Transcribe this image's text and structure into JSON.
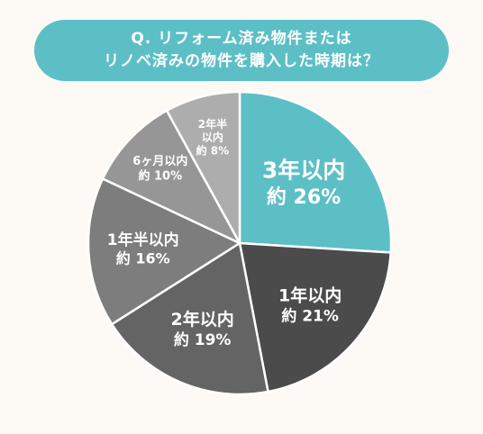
{
  "question": {
    "line1": "Q. リフォーム済み物件または",
    "line2": "リノベ済みの物件を購入した時期は？"
  },
  "chart_data": {
    "type": "pie",
    "start_angle_deg": 0,
    "direction": "clockwise",
    "slices": [
      {
        "lines": [
          "3年以内"
        ],
        "value_text": "約 26%",
        "value": 26,
        "color": "#5cbfc6"
      },
      {
        "lines": [
          "1年以内"
        ],
        "value_text": "約 21%",
        "value": 21,
        "color": "#4b4b4b"
      },
      {
        "lines": [
          "2年以内"
        ],
        "value_text": "約 19%",
        "value": 19,
        "color": "#646464"
      },
      {
        "lines": [
          "1年半以内"
        ],
        "value_text": "約 16%",
        "value": 16,
        "color": "#7d7d7d"
      },
      {
        "lines": [
          "6ヶ月以内"
        ],
        "value_text": "約 10%",
        "value": 10,
        "color": "#969696"
      },
      {
        "lines": [
          "2年半",
          "以内"
        ],
        "value_text": "約 8%",
        "value": 8,
        "color": "#adadad"
      }
    ]
  }
}
